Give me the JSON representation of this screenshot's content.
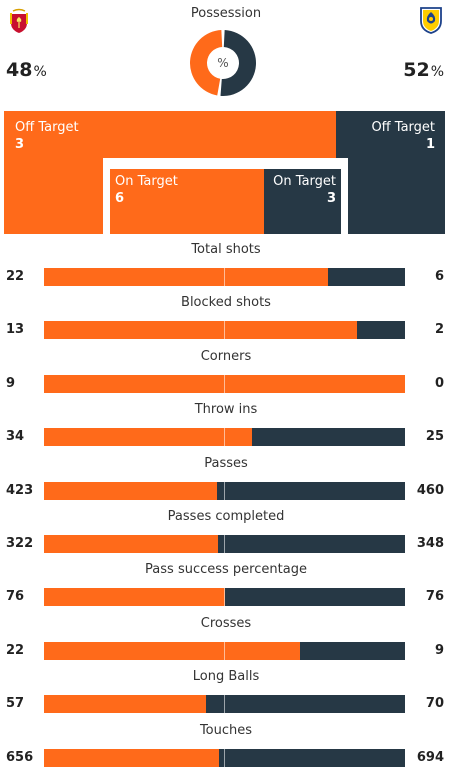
{
  "possession": {
    "title": "Possession",
    "center_label": "%",
    "home_value": "48",
    "away_value": "52",
    "unit": "%",
    "home_fraction": 0.48
  },
  "colors": {
    "home": "#ff6a1a",
    "away": "#263845"
  },
  "teams": {
    "home_crest_icon": "liverpool-crest-icon",
    "away_crest_icon": "leeds-crest-icon"
  },
  "shots": {
    "off_target": {
      "label": "Off Target",
      "home": "3",
      "away": "1"
    },
    "on_target": {
      "label": "On Target",
      "home": "6",
      "away": "3"
    }
  },
  "stats": [
    {
      "label": "Total shots",
      "home": "22",
      "away": "6",
      "home_share": 0.786
    },
    {
      "label": "Blocked shots",
      "home": "13",
      "away": "2",
      "home_share": 0.867
    },
    {
      "label": "Corners",
      "home": "9",
      "away": "0",
      "home_share": 1.0
    },
    {
      "label": "Throw ins",
      "home": "34",
      "away": "25",
      "home_share": 0.576
    },
    {
      "label": "Passes",
      "home": "423",
      "away": "460",
      "home_share": 0.479
    },
    {
      "label": "Passes completed",
      "home": "322",
      "away": "348",
      "home_share": 0.481
    },
    {
      "label": "Pass success percentage",
      "home": "76",
      "away": "76",
      "home_share": 0.5
    },
    {
      "label": "Crosses",
      "home": "22",
      "away": "9",
      "home_share": 0.71
    },
    {
      "label": "Long Balls",
      "home": "57",
      "away": "70",
      "home_share": 0.449
    },
    {
      "label": "Touches",
      "home": "656",
      "away": "694",
      "home_share": 0.486
    }
  ]
}
